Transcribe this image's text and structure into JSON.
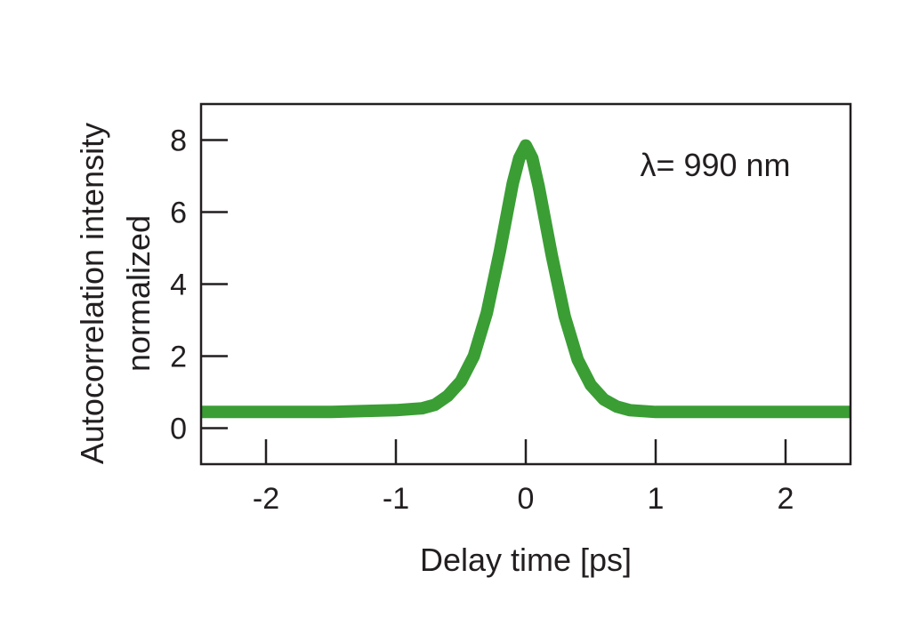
{
  "chart_data": {
    "type": "line",
    "title": "",
    "xlabel": "Delay time [ps]",
    "ylabel_lines": [
      "Autocorrelation intensity",
      "normalized"
    ],
    "xlim": [
      -2.5,
      2.5
    ],
    "ylim": [
      -1,
      9
    ],
    "xticks": [
      -2,
      -1,
      0,
      1,
      2
    ],
    "xtick_labels": [
      "-2",
      "-1",
      "0",
      "1",
      "2"
    ],
    "yticks": [
      0,
      2,
      4,
      6,
      8
    ],
    "ytick_labels": [
      "0",
      "2",
      "4",
      "6",
      "8"
    ],
    "grid": false,
    "legend": "none",
    "annotation": "λ= 990 nm",
    "series": [
      {
        "color": "#3a9e35",
        "x": [
          -2.5,
          -2.0,
          -1.5,
          -1.0,
          -0.8,
          -0.7,
          -0.6,
          -0.5,
          -0.4,
          -0.3,
          -0.2,
          -0.1,
          -0.05,
          0.0,
          0.05,
          0.1,
          0.2,
          0.3,
          0.4,
          0.5,
          0.6,
          0.7,
          0.8,
          1.0,
          1.5,
          2.0,
          2.5
        ],
        "y": [
          0.45,
          0.45,
          0.45,
          0.5,
          0.55,
          0.65,
          0.9,
          1.3,
          2.0,
          3.2,
          4.9,
          6.8,
          7.5,
          7.85,
          7.5,
          6.7,
          4.8,
          3.1,
          1.9,
          1.2,
          0.8,
          0.6,
          0.5,
          0.45,
          0.45,
          0.45,
          0.45
        ]
      }
    ]
  }
}
